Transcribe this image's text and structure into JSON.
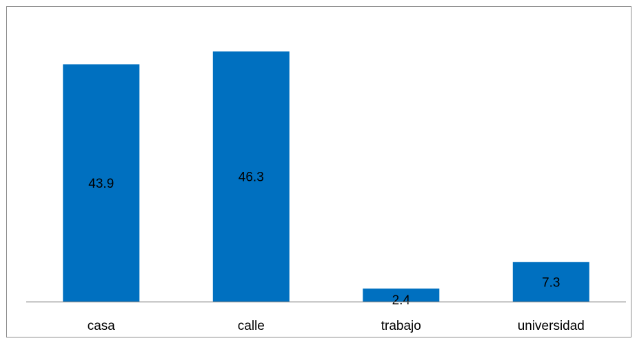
{
  "chart_data": {
    "type": "bar",
    "title": "",
    "xlabel": "",
    "ylabel": "",
    "categories": [
      "casa",
      "calle",
      "trabajo",
      "universidad"
    ],
    "values": [
      43.9,
      46.3,
      2.4,
      7.3
    ],
    "data_labels": [
      "43.9",
      "46.3",
      "2.4",
      "7.3"
    ],
    "ylim": [
      0,
      50
    ],
    "grid": false,
    "legend": "none",
    "bar_color": "#0070C0",
    "axis_color": "#8c8c8c"
  }
}
